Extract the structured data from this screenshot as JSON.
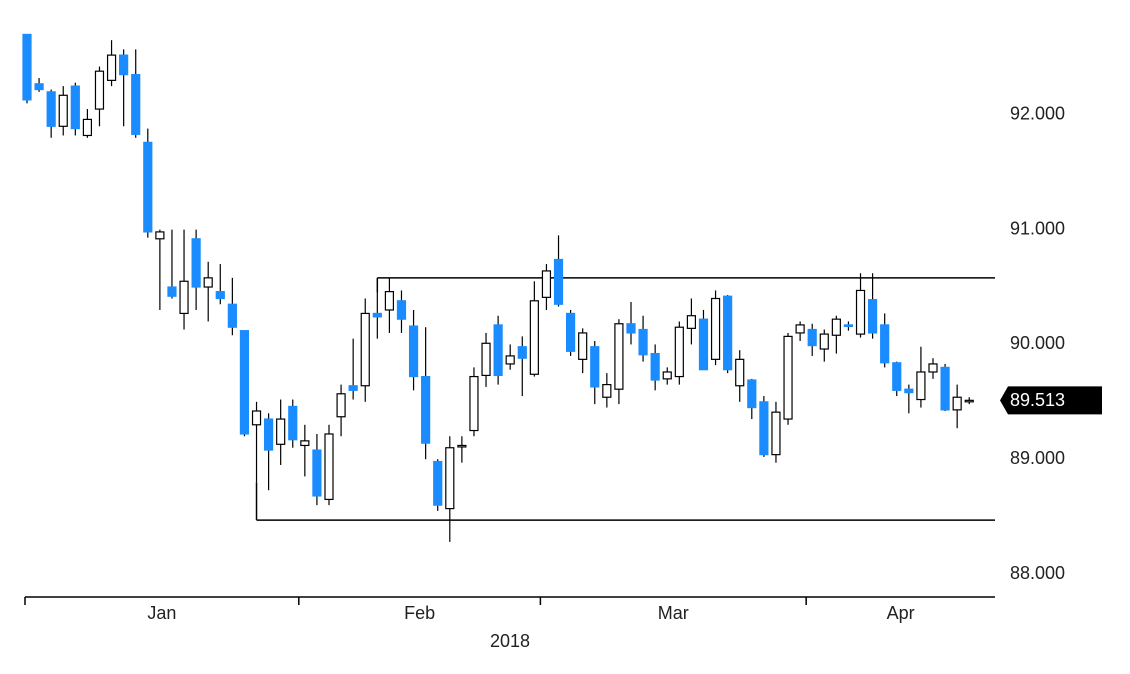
{
  "chart_data": {
    "type": "candlestick",
    "up_color": "#ffffff",
    "down_color": "#1a8cff",
    "open": [
      92.7,
      92.27,
      92.2,
      91.9,
      92.25,
      91.82,
      92.05,
      92.3,
      92.52,
      92.35,
      91.76,
      90.92,
      90.5,
      90.27,
      90.92,
      90.5,
      90.46,
      90.35,
      90.12,
      89.3,
      89.35,
      89.13,
      89.46,
      89.12,
      89.08,
      88.65,
      89.37,
      89.64,
      89.64,
      90.27,
      90.3,
      90.38,
      90.16,
      89.72,
      88.98,
      88.57,
      89.11,
      89.25,
      89.73,
      90.17,
      89.83,
      89.98,
      89.74,
      90.41,
      90.74,
      90.27,
      89.87,
      89.98,
      89.54,
      89.61,
      90.18,
      90.13,
      89.92,
      89.7,
      89.72,
      90.14,
      90.22,
      89.87,
      90.42,
      89.64,
      89.69,
      89.5,
      89.04,
      89.35,
      90.1,
      90.13,
      89.96,
      90.08,
      90.17,
      90.09,
      90.39,
      90.17,
      89.84,
      89.61,
      89.52,
      89.76,
      89.8,
      89.43,
      89.51
    ],
    "high": [
      92.7,
      92.32,
      92.22,
      92.25,
      92.28,
      92.05,
      92.42,
      92.65,
      92.57,
      92.57,
      91.88,
      91.0,
      91.0,
      91.0,
      91.0,
      90.72,
      90.7,
      90.58,
      90.12,
      89.5,
      89.4,
      89.52,
      89.52,
      89.3,
      89.22,
      89.3,
      89.65,
      90.05,
      90.4,
      90.45,
      90.58,
      90.47,
      90.3,
      90.15,
      89.0,
      89.2,
      89.2,
      89.8,
      90.1,
      90.25,
      90.0,
      90.07,
      90.55,
      90.7,
      90.95,
      90.3,
      90.14,
      90.03,
      89.75,
      90.22,
      90.37,
      90.25,
      90.0,
      89.8,
      90.2,
      90.4,
      90.3,
      90.47,
      90.43,
      89.95,
      89.7,
      89.55,
      89.5,
      90.1,
      90.2,
      90.18,
      90.13,
      90.25,
      90.2,
      90.62,
      90.62,
      90.27,
      89.85,
      89.65,
      89.98,
      89.88,
      89.83,
      89.65,
      89.54
    ],
    "low": [
      92.1,
      92.2,
      91.8,
      91.82,
      91.82,
      91.8,
      91.9,
      92.25,
      91.9,
      91.8,
      90.93,
      90.3,
      90.4,
      90.13,
      90.3,
      90.2,
      90.35,
      90.08,
      89.2,
      88.8,
      88.73,
      88.95,
      89.1,
      88.85,
      88.6,
      88.6,
      89.2,
      89.52,
      89.5,
      90.05,
      90.1,
      90.1,
      89.6,
      89.0,
      88.55,
      88.28,
      88.97,
      89.2,
      89.63,
      89.65,
      89.78,
      89.55,
      89.72,
      90.3,
      90.33,
      89.9,
      89.75,
      89.48,
      89.45,
      89.48,
      90.0,
      89.85,
      89.6,
      89.65,
      89.65,
      90.0,
      89.78,
      89.82,
      89.75,
      89.5,
      89.35,
      89.02,
      88.97,
      89.3,
      90.03,
      89.9,
      89.85,
      89.92,
      90.12,
      90.06,
      90.05,
      89.8,
      89.55,
      89.4,
      89.45,
      89.7,
      89.42,
      89.27,
      89.48
    ],
    "close": [
      92.13,
      92.22,
      91.9,
      92.17,
      91.88,
      91.96,
      92.38,
      92.52,
      92.35,
      91.83,
      90.98,
      90.98,
      90.42,
      90.55,
      90.5,
      90.58,
      90.4,
      90.15,
      89.22,
      89.42,
      89.08,
      89.35,
      89.17,
      89.16,
      88.68,
      89.22,
      89.57,
      89.6,
      90.27,
      90.24,
      90.46,
      90.22,
      89.72,
      89.14,
      88.6,
      89.1,
      89.12,
      89.72,
      90.01,
      89.73,
      89.9,
      89.88,
      90.38,
      90.64,
      90.35,
      89.94,
      90.1,
      89.63,
      89.65,
      90.18,
      90.1,
      89.91,
      89.69,
      89.76,
      90.15,
      90.25,
      89.78,
      90.4,
      89.78,
      89.87,
      89.45,
      89.04,
      89.41,
      90.07,
      90.17,
      89.99,
      90.09,
      90.22,
      90.16,
      90.47,
      90.1,
      89.84,
      89.6,
      89.58,
      89.76,
      89.83,
      89.43,
      89.54,
      89.513
    ],
    "months": [
      {
        "label": "Jan",
        "count": 23
      },
      {
        "label": "Feb",
        "count": 20
      },
      {
        "label": "Mar",
        "count": 22
      },
      {
        "label": "Apr",
        "count": 14
      }
    ],
    "xlabel": "2018",
    "levels": [
      {
        "value": 90.58,
        "from_index": 29,
        "anchor": "high"
      },
      {
        "value": 88.47,
        "from_index": 19,
        "anchor": "low"
      }
    ],
    "last_price": {
      "value": 89.513,
      "label": "89.513"
    },
    "ylim": [
      87.8,
      93.0
    ],
    "yticks": [
      {
        "value": 88,
        "label": "88.000"
      },
      {
        "value": 89,
        "label": "89.000"
      },
      {
        "value": 90,
        "label": "90.000"
      },
      {
        "value": 91,
        "label": "91.000"
      },
      {
        "value": 92,
        "label": "92.000"
      }
    ]
  }
}
